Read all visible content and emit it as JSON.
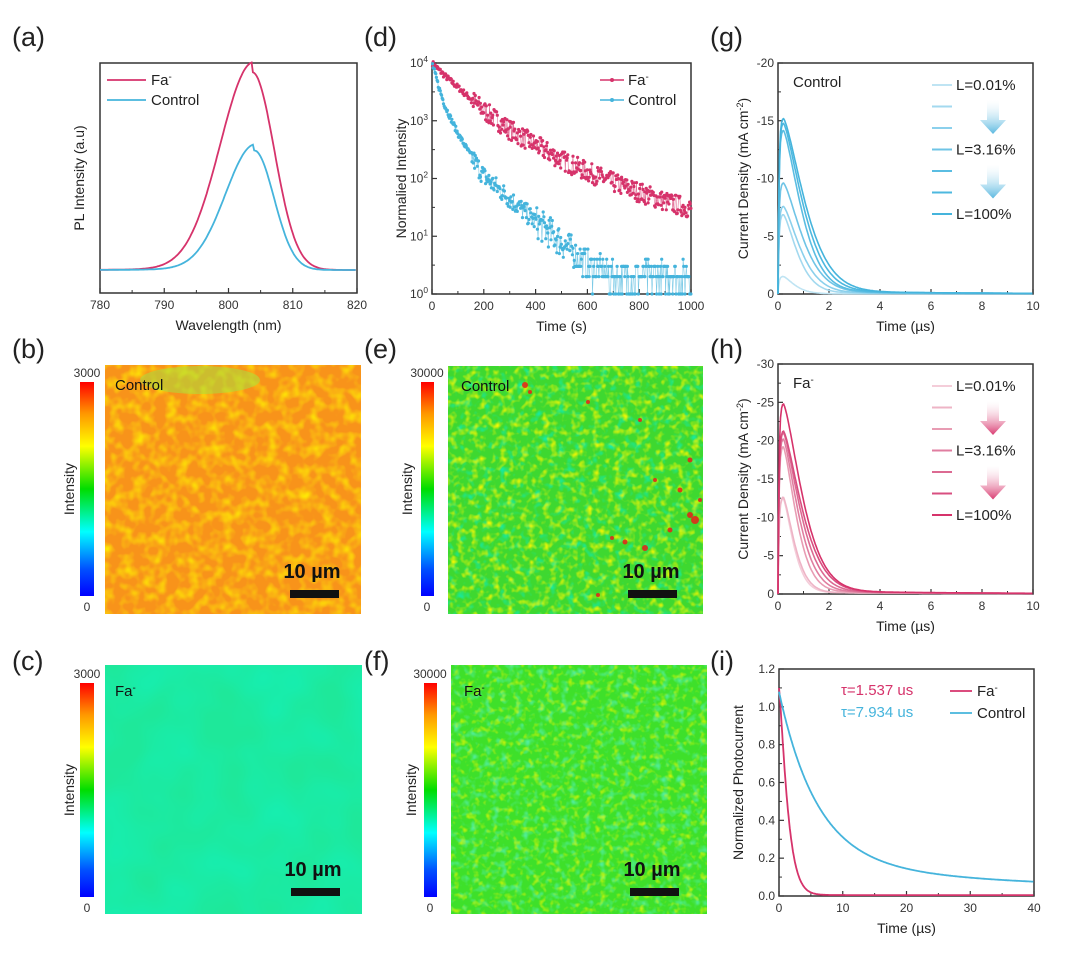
{
  "colors": {
    "fa": "#d6336b",
    "control": "#45b4dc",
    "fa_shades": [
      "#f4cdd9",
      "#eeb4c6",
      "#e89cb3",
      "#e07ea0",
      "#dc6a92",
      "#d84f80",
      "#d6336b"
    ],
    "control_shades": [
      "#bfe4f3",
      "#a3d9ef",
      "#8bd0ec",
      "#6fc4e6",
      "#5abde2",
      "#4db8df",
      "#45b4dc"
    ]
  },
  "panels": {
    "a": {
      "label": "(a)"
    },
    "b": {
      "label": "(b)",
      "sample": "Control",
      "cbar_max": "3000",
      "cbar_min": "0",
      "cbar_title": "Intensity",
      "scale_bar": "10 µm"
    },
    "c": {
      "label": "(c)",
      "sample": "Fa-",
      "cbar_max": "3000",
      "cbar_min": "0",
      "cbar_title": "Intensity",
      "scale_bar": "10 µm"
    },
    "d": {
      "label": "(d)"
    },
    "e": {
      "label": "(e)",
      "sample": "Control",
      "cbar_max": "30000",
      "cbar_min": "0",
      "cbar_title": "Intensity",
      "scale_bar": "10 µm"
    },
    "f": {
      "label": "(f)",
      "sample": "Fa-",
      "cbar_max": "30000",
      "cbar_min": "0",
      "cbar_title": "Intensity",
      "scale_bar": "10 µm"
    },
    "g": {
      "label": "(g)"
    },
    "h": {
      "label": "(h)"
    },
    "i": {
      "label": "(i)"
    }
  },
  "chart_data": [
    {
      "id": "a",
      "type": "line",
      "title": "",
      "xlabel": "Wavelength (nm)",
      "ylabel": "PL Intensity (a.u)",
      "xlim": [
        780,
        820
      ],
      "xticks": [
        "780",
        "790",
        "800",
        "810",
        "820"
      ],
      "ylim": [
        0,
        1.0
      ],
      "yticks": [],
      "legend": {
        "placement": "top-left",
        "entries": [
          "Fa-",
          "Control"
        ]
      },
      "series": [
        {
          "name": "Fa-",
          "color_key": "fa",
          "peak_x": 803.7,
          "peak_y": 0.96,
          "fwhm": 9.5,
          "baseline": 0.1
        },
        {
          "name": "Control",
          "color_key": "control",
          "peak_x": 804.0,
          "peak_y": 0.62,
          "fwhm": 8.5,
          "baseline": 0.1
        }
      ]
    },
    {
      "id": "d",
      "type": "scatter",
      "title": "",
      "xlabel": "Time (s)",
      "ylabel": "Normalied Intensity",
      "xlim": [
        0,
        1000
      ],
      "xticks": [
        "0",
        "200",
        "400",
        "600",
        "800",
        "1000"
      ],
      "yscale": "log",
      "ylim": [
        1,
        10000
      ],
      "yticks": [
        "10^0",
        "10^1",
        "10^2",
        "10^3",
        "10^4"
      ],
      "legend": {
        "placement": "top-right",
        "entries": [
          "Fa-",
          "Control"
        ]
      },
      "series": [
        {
          "name": "Fa-",
          "color_key": "fa",
          "x": [
            0,
            50,
            100,
            200,
            300,
            400,
            500,
            600,
            700,
            800,
            900,
            1000
          ],
          "y": [
            10000,
            6000,
            3800,
            1500,
            700,
            380,
            210,
            130,
            85,
            58,
            40,
            30
          ]
        },
        {
          "name": "Control",
          "color_key": "control",
          "x": [
            0,
            25,
            50,
            100,
            150,
            200,
            300,
            400,
            500,
            550,
            600,
            700,
            800,
            900,
            1000
          ],
          "y": [
            10000,
            4000,
            1800,
            600,
            250,
            110,
            45,
            18,
            8,
            5,
            3,
            2,
            2,
            2,
            2
          ]
        }
      ]
    },
    {
      "id": "g",
      "type": "line",
      "title": "",
      "annotation": "Control",
      "xlabel": "Time (µs)",
      "ylabel": "Current Density (mA cm-2)",
      "xlim": [
        0,
        10
      ],
      "xticks": [
        "0",
        "2",
        "4",
        "6",
        "8",
        "10"
      ],
      "ylim": [
        0,
        -20
      ],
      "yticks": [
        "0",
        "-5",
        "-10",
        "-15",
        "-20"
      ],
      "legend": {
        "placement": "top-right",
        "entries": [
          "L=0.01%",
          "",
          "",
          "L=3.16%",
          "",
          "",
          "L=100%"
        ]
      },
      "series": [
        {
          "name": "L=0.01%",
          "peak": -1.5,
          "tau": 0.6
        },
        {
          "name": "",
          "peak": -6.8,
          "tau": 0.75
        },
        {
          "name": "",
          "peak": -7.5,
          "tau": 0.9
        },
        {
          "name": "L=3.16%",
          "peak": -9.5,
          "tau": 1.0
        },
        {
          "name": "",
          "peak": -14.0,
          "tau": 0.95
        },
        {
          "name": "",
          "peak": -14.6,
          "tau": 1.05
        },
        {
          "name": "L=100%",
          "peak": -15.0,
          "tau": 1.15
        }
      ]
    },
    {
      "id": "h",
      "type": "line",
      "title": "",
      "annotation": "Fa-",
      "xlabel": "Time (µs)",
      "ylabel": "Current Density (mA cm-2)",
      "xlim": [
        0,
        10
      ],
      "xticks": [
        "0",
        "2",
        "4",
        "6",
        "8",
        "10"
      ],
      "ylim": [
        0,
        -30
      ],
      "yticks": [
        "0",
        "-5",
        "-10",
        "-15",
        "-20",
        "-25",
        "-30"
      ],
      "legend": {
        "placement": "top-right",
        "entries": [
          "L=0.01%",
          "",
          "",
          "L=3.16%",
          "",
          "",
          "L=100%"
        ]
      },
      "series": [
        {
          "name": "L=0.01%",
          "peak": -12.3,
          "tau": 0.55
        },
        {
          "name": "",
          "peak": -12.5,
          "tau": 0.6
        },
        {
          "name": "",
          "peak": -19.0,
          "tau": 0.7
        },
        {
          "name": "L=3.16%",
          "peak": -20.0,
          "tau": 0.8
        },
        {
          "name": "",
          "peak": -20.8,
          "tau": 0.9
        },
        {
          "name": "",
          "peak": -21.0,
          "tau": 1.0
        },
        {
          "name": "L=100%",
          "peak": -24.5,
          "tau": 1.0
        }
      ]
    },
    {
      "id": "i",
      "type": "line",
      "title": "",
      "xlabel": "Time (µs)",
      "ylabel": "Normalized Photocurrent",
      "xlim": [
        0,
        40
      ],
      "xticks": [
        "0",
        "10",
        "20",
        "30",
        "40"
      ],
      "ylim": [
        0,
        1.2
      ],
      "yticks": [
        "0.0",
        "0.2",
        "0.4",
        "0.6",
        "0.8",
        "1.0",
        "1.2"
      ],
      "legend": {
        "placement": "top-right",
        "entries": [
          "Fa-",
          "Control"
        ]
      },
      "annotations": [
        {
          "text": "τ=1.537 us",
          "color_key": "fa"
        },
        {
          "text": "τ=7.934 us",
          "color_key": "control"
        }
      ],
      "series": [
        {
          "name": "Fa-",
          "color_key": "fa",
          "start": 1.1,
          "tau": 1.537,
          "floor": 0.005
        },
        {
          "name": "Control",
          "color_key": "control",
          "start": 1.08,
          "tau": 7.934,
          "floor": 0.03
        }
      ]
    }
  ]
}
